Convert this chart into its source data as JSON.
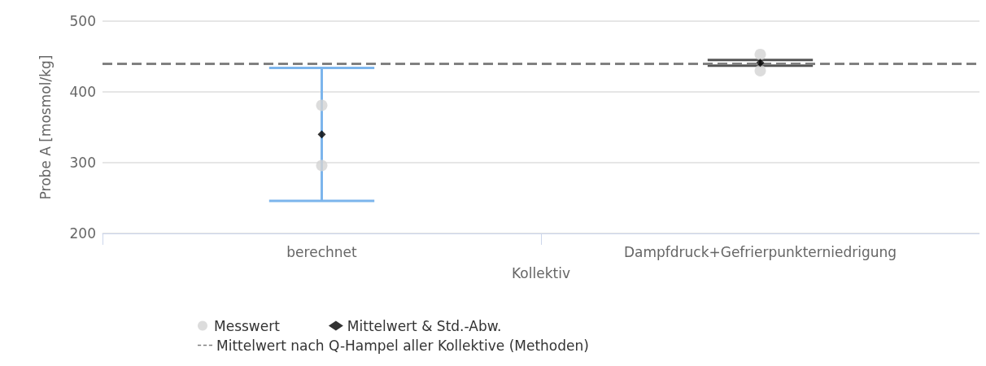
{
  "chart_data": {
    "type": "scatter",
    "xlabel": "Kollektiv",
    "ylabel": "Probe A [mosmol/kg]",
    "categories": [
      "berechnet",
      "Dampfdruck+Gefrierpunkterniedrigung"
    ],
    "series": [
      {
        "name": "Messwert",
        "color": "#d3d3d3",
        "marker": "circle",
        "x": [
          "berechnet",
          "berechnet",
          "Dampfdruck+Gefrierpunkterniedrigung",
          "Dampfdruck+Gefrierpunkterniedrigung"
        ],
        "values": [
          381,
          296,
          453,
          430
        ]
      },
      {
        "name": "Mittelwert & Std.-Abw.",
        "color": "#000000",
        "marker": "diamond",
        "x": [
          "berechnet",
          "Dampfdruck+Gefrierpunkterniedrigung"
        ],
        "values": [
          340,
          441
        ],
        "errors": [
          94,
          4
        ]
      }
    ],
    "ref_lines": [
      {
        "axis": "y",
        "value": 440,
        "label": "Mittelwert nach Q-Hampel aller Kollektive (Methoden)",
        "color": "#808080",
        "line_style": "dashed"
      }
    ],
    "ylim": [
      200,
      500
    ],
    "yticks": [
      200,
      300,
      400,
      500
    ],
    "grid": "y",
    "legend": "bottom"
  }
}
